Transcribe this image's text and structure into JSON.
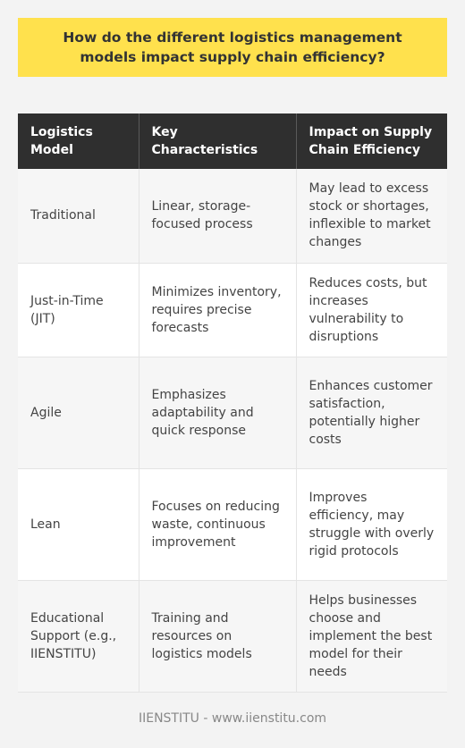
{
  "question": "How do the different logistics management models impact supply chain efficiency?",
  "table": {
    "headers": [
      "Logistics Model",
      "Key Characteristics",
      "Impact on Supply Chain Efficiency"
    ],
    "rows": [
      [
        "Traditional",
        "Linear, storage-focused process",
        "May lead to excess stock or shortages, inflexible to market changes"
      ],
      [
        "Just-in-Time (JIT)",
        "Minimizes inventory, requires precise forecasts",
        "Reduces costs, but increases vulnerability to disruptions"
      ],
      [
        "Agile",
        "Emphasizes adaptability and quick response",
        "Enhances customer satisfaction, potentially higher costs"
      ],
      [
        "Lean",
        "Focuses on reducing waste, continuous improvement",
        "Improves efficiency, may struggle with overly rigid protocols"
      ],
      [
        "Educational Support (e.g., IIENSTITU)",
        "Training and resources on logistics models",
        "Helps businesses choose and implement the best model for their needs"
      ]
    ]
  },
  "footer": "IIENSTITU - www.iienstitu.com",
  "colors": {
    "question_bg": "#ffe14d",
    "header_bg": "#2f2f2f",
    "page_bg": "#f3f3f3"
  }
}
